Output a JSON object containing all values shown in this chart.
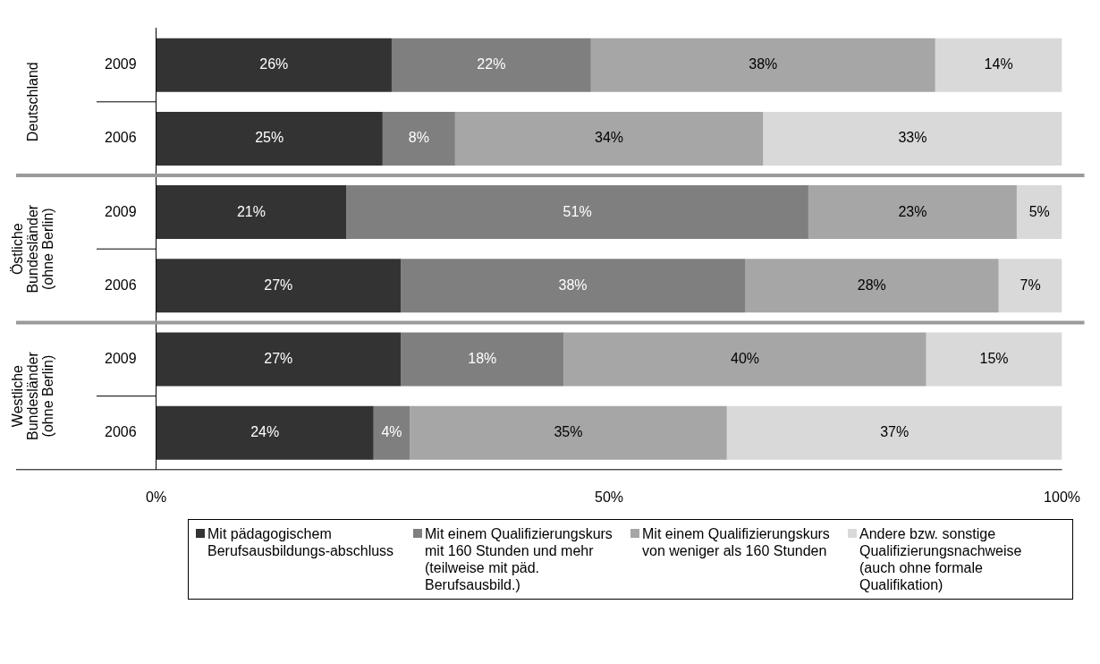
{
  "chart_data": {
    "type": "bar",
    "orientation": "horizontal",
    "stacked": true,
    "categories": [
      "2009",
      "2006",
      "2009",
      "2006",
      "2009",
      "2006"
    ],
    "annotations": [
      "Deutschland",
      "Östliche Bundesländer (ohne Berlin)",
      "Westliche Bundesländer (ohne Berlin)"
    ],
    "xlim": [
      0,
      100
    ],
    "xticks": [
      {
        "value": 0,
        "label": "0%"
      },
      {
        "value": 50,
        "label": "50%"
      },
      {
        "value": 100,
        "label": "100%"
      }
    ],
    "legend": "bottom",
    "series": [
      {
        "name": "Mit pädagogischem Berufsausbildungs-abschluss",
        "color": "#333333",
        "values": [
          26,
          25,
          21,
          27,
          27,
          24
        ],
        "value_labels": [
          "26%",
          "25%",
          "21%",
          "27%",
          "27%",
          "24%"
        ]
      },
      {
        "name": "Mit einem Qualifizierungskurs mit 160 Stunden und mehr (teilweise mit päd. Berufsausbild.)",
        "color": "#7f7f7f",
        "values": [
          22,
          8,
          51,
          38,
          18,
          4
        ],
        "value_labels": [
          "22%",
          "8%",
          "51%",
          "38%",
          "18%",
          "4%"
        ]
      },
      {
        "name": "Mit einem Qualifizierungskurs von weniger als 160 Stunden",
        "color": "#a6a6a6",
        "values": [
          38,
          34,
          23,
          28,
          40,
          35
        ],
        "value_labels": [
          "38%",
          "34%",
          "23%",
          "28%",
          "40%",
          "35%"
        ]
      },
      {
        "name": "Andere bzw. sonstige Qualifizierungsnachweise (auch ohne formale Qualifikation)",
        "color": "#d9d9d9",
        "values": [
          14,
          33,
          5,
          7,
          15,
          37
        ],
        "value_labels": [
          "14%",
          "33%",
          "5%",
          "7%",
          "15%",
          "37%"
        ]
      }
    ]
  }
}
